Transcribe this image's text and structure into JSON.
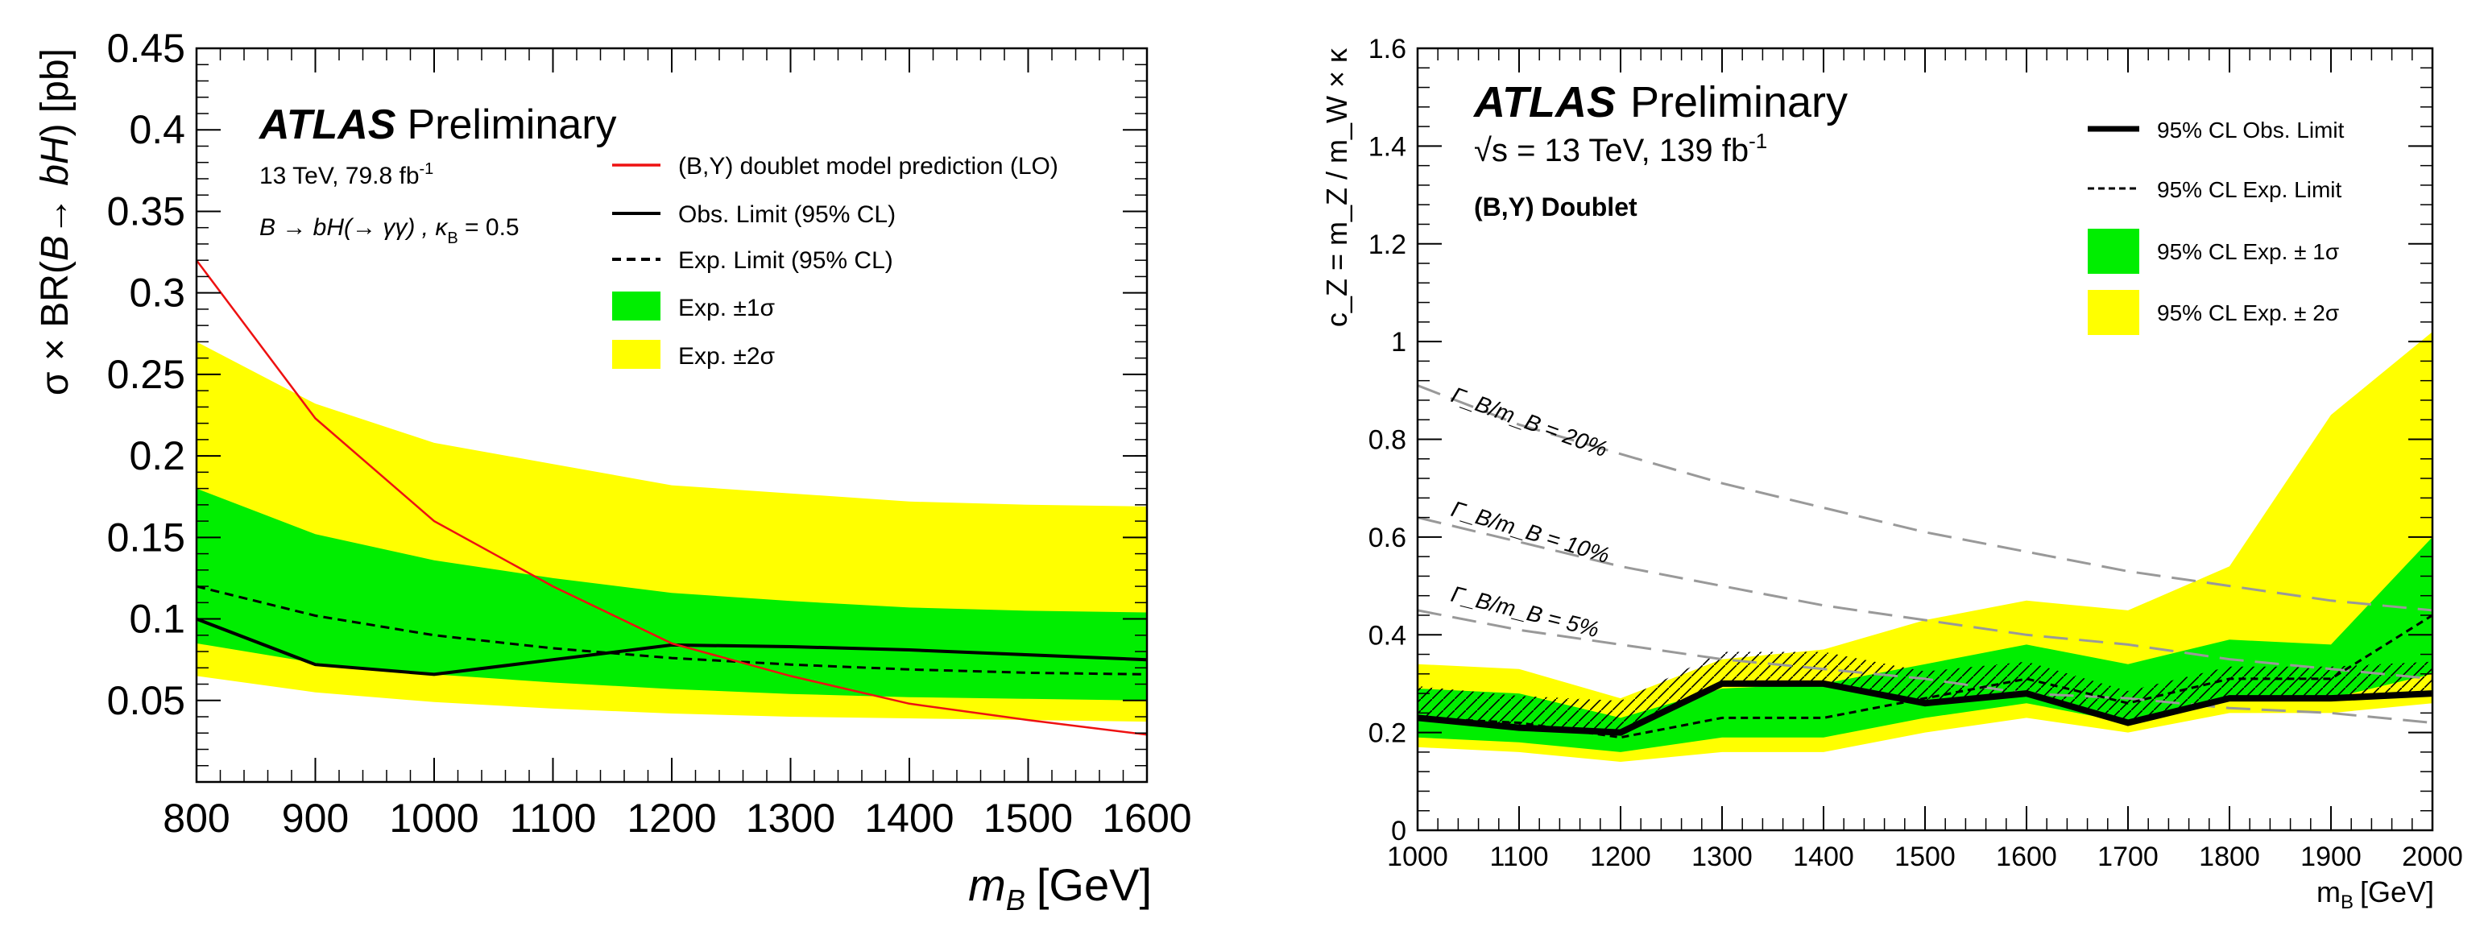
{
  "colors": {
    "band1": "#00ee00",
    "band2": "#ffff00",
    "prediction": "#ee1111",
    "observed": "#000000",
    "expected": "#000000",
    "width_lines": "#999999"
  },
  "chart_data": [
    {
      "type": "line",
      "id": "left",
      "title": "",
      "xlabel": {
        "var": "m",
        "sub": "B",
        "unit": "[GeV]"
      },
      "ylabel": {
        "pre": "σ × BR(",
        "B": "B",
        "arrow": "→ ",
        "b": "b",
        "H": "H",
        "post": ") [pb]"
      },
      "xlim": [
        800,
        1600
      ],
      "ylim": [
        0,
        0.45
      ],
      "xticks": [
        "800",
        "900",
        "1000",
        "1100",
        "1200",
        "1300",
        "1400",
        "1500",
        "1600"
      ],
      "xtick_values": [
        800,
        900,
        1000,
        1100,
        1200,
        1300,
        1400,
        1500,
        1600
      ],
      "yticks": [
        "0.05",
        "0.1",
        "0.15",
        "0.2",
        "0.25",
        "0.3",
        "0.35",
        "0.4",
        "0.45"
      ],
      "ytick_values": [
        0.05,
        0.1,
        0.15,
        0.2,
        0.25,
        0.3,
        0.35,
        0.4,
        0.45
      ],
      "atlas": {
        "bold": "ATLAS",
        "rest": "Preliminary"
      },
      "annotations": {
        "energy_lumi": "13 TeV, 79.8 fb",
        "lumi_sup": "-1",
        "process_a": "B → bH(→ γγ) , κ",
        "process_sub": "B",
        "process_b": " = 0.5"
      },
      "legend": {
        "prediction": "(B,Y) doublet model prediction (LO)",
        "observed": "Obs. Limit (95% CL)",
        "expected": "Exp. Limit (95% CL)",
        "band1": "Exp. ±1σ",
        "band2": "Exp. ±2σ"
      },
      "x": [
        800,
        900,
        1000,
        1100,
        1200,
        1300,
        1400,
        1500,
        1600
      ],
      "series": [
        {
          "name": "Exp. ±2σ upper",
          "values": [
            0.27,
            0.232,
            0.208,
            0.195,
            0.182,
            0.177,
            0.172,
            0.17,
            0.169
          ]
        },
        {
          "name": "Exp. ±2σ lower",
          "values": [
            0.065,
            0.055,
            0.049,
            0.045,
            0.042,
            0.04,
            0.039,
            0.038,
            0.037
          ]
        },
        {
          "name": "Exp. ±1σ upper",
          "values": [
            0.18,
            0.152,
            0.136,
            0.125,
            0.116,
            0.111,
            0.107,
            0.105,
            0.104
          ]
        },
        {
          "name": "Exp. ±1σ lower",
          "values": [
            0.085,
            0.073,
            0.066,
            0.061,
            0.057,
            0.054,
            0.052,
            0.051,
            0.05
          ]
        },
        {
          "name": "Exp. Limit (95% CL)",
          "values": [
            0.12,
            0.102,
            0.09,
            0.082,
            0.076,
            0.072,
            0.069,
            0.067,
            0.066
          ]
        },
        {
          "name": "Obs. Limit (95% CL)",
          "values": [
            0.1,
            0.072,
            0.066,
            0.075,
            0.084,
            0.083,
            0.081,
            0.078,
            0.075
          ]
        },
        {
          "name": "(B,Y) doublet model prediction (LO)",
          "values": [
            0.32,
            0.223,
            0.16,
            0.12,
            0.085,
            0.065,
            0.048,
            0.038,
            0.029
          ]
        }
      ]
    },
    {
      "type": "line",
      "id": "right",
      "title": "",
      "xlabel": {
        "var": "m",
        "sub": "B",
        "unit": "[GeV]"
      },
      "ylabel": "c_Z = m_Z / m_W × κ",
      "xlim": [
        1000,
        2000
      ],
      "ylim": [
        0,
        1.6
      ],
      "xticks": [
        "1000",
        "1100",
        "1200",
        "1300",
        "1400",
        "1500",
        "1600",
        "1700",
        "1800",
        "1900",
        "2000"
      ],
      "xtick_values": [
        1000,
        1100,
        1200,
        1300,
        1400,
        1500,
        1600,
        1700,
        1800,
        1900,
        2000
      ],
      "yticks": [
        "0",
        "0.2",
        "0.4",
        "0.6",
        "0.8",
        "1",
        "1.2",
        "1.4",
        "1.6"
      ],
      "ytick_values": [
        0,
        0.2,
        0.4,
        0.6,
        0.8,
        1.0,
        1.2,
        1.4,
        1.6
      ],
      "atlas": {
        "bold": "ATLAS",
        "rest": "Preliminary"
      },
      "annotations": {
        "energy_lumi": "√s = 13 TeV, 139 fb",
        "lumi_sup": "-1",
        "model": "(B,Y) Doublet",
        "width_20": "Γ_B/m_B = 20%",
        "width_10": "Γ_B/m_B = 10%",
        "width_5": "Γ_B/m_B = 5%"
      },
      "legend": {
        "observed": "95% CL Obs. Limit",
        "expected": "95% CL Exp. Limit",
        "band1": "95% CL Exp. ± 1σ",
        "band2": "95% CL Exp. ± 2σ"
      },
      "x": [
        1000,
        1100,
        1200,
        1300,
        1400,
        1500,
        1600,
        1700,
        1800,
        1900,
        2000
      ],
      "series": [
        {
          "name": "95% CL Exp. ± 2σ upper",
          "values": [
            0.34,
            0.33,
            0.27,
            0.35,
            0.37,
            0.43,
            0.47,
            0.45,
            0.54,
            0.85,
            1.02
          ]
        },
        {
          "name": "95% CL Exp. ± 2σ lower",
          "values": [
            0.17,
            0.16,
            0.14,
            0.16,
            0.16,
            0.2,
            0.23,
            0.2,
            0.24,
            0.24,
            0.26
          ]
        },
        {
          "name": "95% CL Exp. ± 1σ upper",
          "values": [
            0.29,
            0.28,
            0.23,
            0.29,
            0.3,
            0.34,
            0.38,
            0.34,
            0.39,
            0.38,
            0.6
          ]
        },
        {
          "name": "95% CL Exp. ± 1σ lower",
          "values": [
            0.19,
            0.18,
            0.16,
            0.19,
            0.19,
            0.23,
            0.26,
            0.22,
            0.27,
            0.27,
            0.32
          ]
        },
        {
          "name": "95% CL Exp. Limit",
          "values": [
            0.23,
            0.22,
            0.19,
            0.23,
            0.23,
            0.27,
            0.31,
            0.26,
            0.31,
            0.31,
            0.44
          ]
        },
        {
          "name": "95% CL Obs. Limit",
          "values": [
            0.23,
            0.21,
            0.2,
            0.3,
            0.3,
            0.26,
            0.28,
            0.22,
            0.27,
            0.27,
            0.28
          ]
        },
        {
          "name": "Γ_B/m_B = 20%",
          "values": [
            0.91,
            0.83,
            0.77,
            0.71,
            0.66,
            0.61,
            0.57,
            0.53,
            0.5,
            0.47,
            0.45
          ]
        },
        {
          "name": "Γ_B/m_B = 10%",
          "values": [
            0.64,
            0.59,
            0.54,
            0.5,
            0.46,
            0.43,
            0.4,
            0.38,
            0.35,
            0.33,
            0.31
          ]
        },
        {
          "name": "Γ_B/m_B = 5%",
          "values": [
            0.45,
            0.41,
            0.38,
            0.35,
            0.33,
            0.31,
            0.28,
            0.27,
            0.25,
            0.24,
            0.22
          ]
        }
      ]
    }
  ]
}
